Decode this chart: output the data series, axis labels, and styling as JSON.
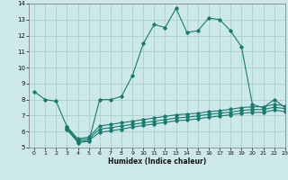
{
  "main_x": [
    0,
    1,
    2,
    3,
    4,
    5,
    6,
    7,
    8,
    9,
    10,
    11,
    12,
    13,
    14,
    15,
    16,
    17,
    18,
    19,
    20,
    21,
    22,
    23
  ],
  "main_y": [
    8.5,
    8.0,
    7.9,
    6.3,
    5.3,
    5.4,
    8.0,
    8.0,
    8.2,
    9.5,
    11.5,
    12.7,
    12.5,
    13.7,
    12.2,
    12.3,
    13.1,
    13.0,
    12.3,
    11.3,
    7.7,
    7.5,
    8.0,
    7.5
  ],
  "line2_x": [
    3,
    4,
    5,
    6,
    7,
    8,
    9,
    10,
    11,
    12,
    13,
    14,
    15,
    16,
    17,
    18,
    19,
    20,
    21,
    22,
    23
  ],
  "line2_y": [
    6.3,
    5.55,
    5.65,
    6.35,
    6.45,
    6.55,
    6.65,
    6.75,
    6.85,
    6.95,
    7.05,
    7.1,
    7.15,
    7.25,
    7.3,
    7.4,
    7.5,
    7.55,
    7.55,
    7.7,
    7.6
  ],
  "line3_x": [
    3,
    4,
    5,
    6,
    7,
    8,
    9,
    10,
    11,
    12,
    13,
    14,
    15,
    16,
    17,
    18,
    19,
    20,
    21,
    22,
    23
  ],
  "line3_y": [
    6.2,
    5.45,
    5.55,
    6.15,
    6.25,
    6.35,
    6.45,
    6.55,
    6.65,
    6.75,
    6.85,
    6.9,
    6.98,
    7.08,
    7.15,
    7.22,
    7.32,
    7.38,
    7.38,
    7.52,
    7.44
  ],
  "line4_x": [
    3,
    4,
    5,
    6,
    7,
    8,
    9,
    10,
    11,
    12,
    13,
    14,
    15,
    16,
    17,
    18,
    19,
    20,
    21,
    22,
    23
  ],
  "line4_y": [
    6.1,
    5.35,
    5.45,
    5.95,
    6.05,
    6.15,
    6.28,
    6.38,
    6.48,
    6.58,
    6.68,
    6.72,
    6.8,
    6.9,
    6.97,
    7.05,
    7.15,
    7.2,
    7.2,
    7.35,
    7.25
  ],
  "color": "#1a7a6e",
  "bg_color": "#cce8e8",
  "grid_color": "#aacece",
  "xlabel": "Humidex (Indice chaleur)",
  "ylim": [
    5,
    14
  ],
  "xlim": [
    -0.5,
    23
  ],
  "yticks": [
    5,
    6,
    7,
    8,
    9,
    10,
    11,
    12,
    13,
    14
  ],
  "xticks": [
    0,
    1,
    2,
    3,
    4,
    5,
    6,
    7,
    8,
    9,
    10,
    11,
    12,
    13,
    14,
    15,
    16,
    17,
    18,
    19,
    20,
    21,
    22,
    23
  ]
}
